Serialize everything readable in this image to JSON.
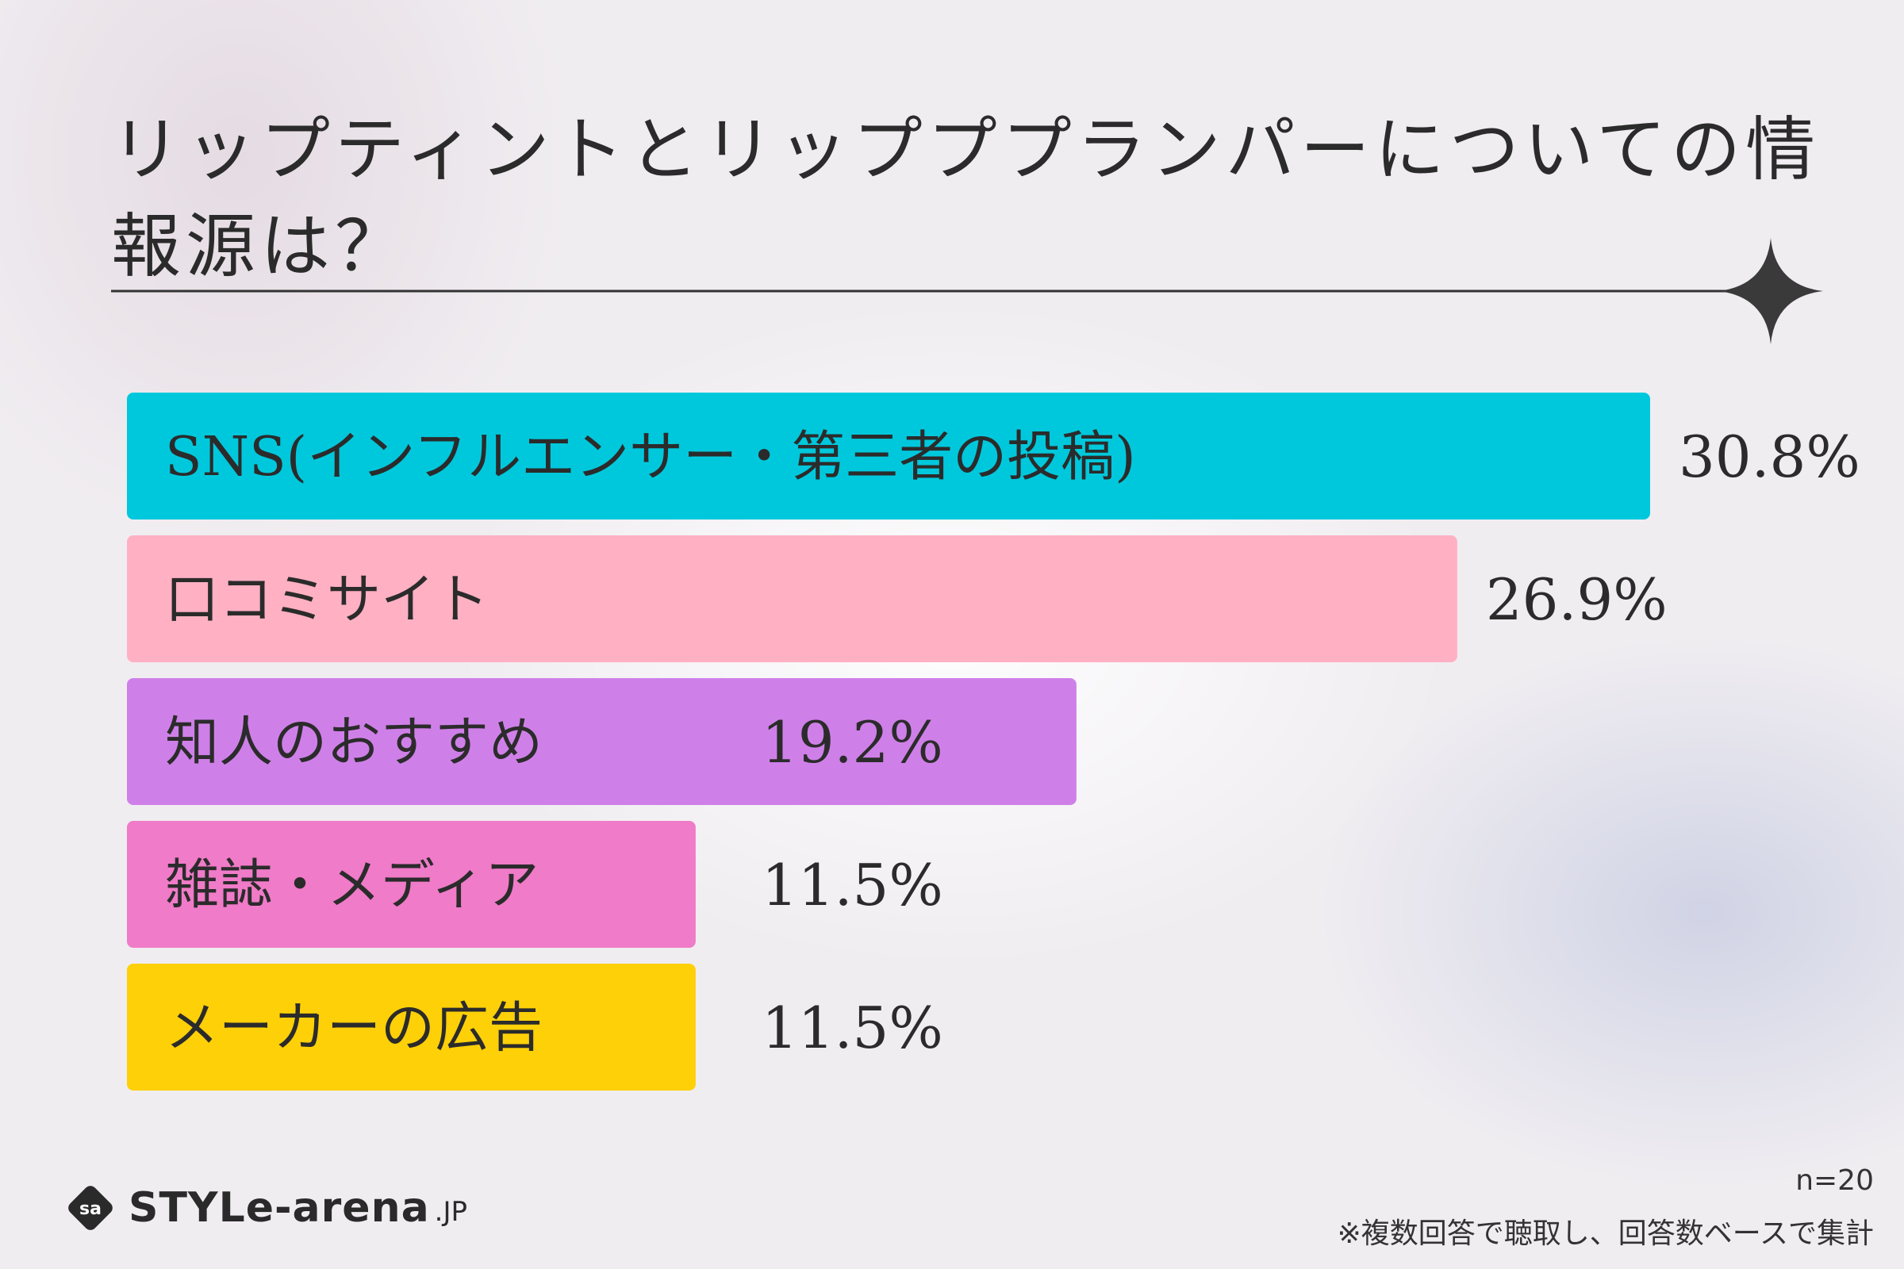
{
  "title": "リップティントとリップププランパーについての情報源は？",
  "footer": {
    "n_label": "n=20",
    "note": "※複数回答で聴取し、回答数ベースで集計"
  },
  "logo": {
    "brand": "STYLe-arena",
    "suffix": ".JP"
  },
  "colors": {
    "text": "#2b2b2b",
    "sns": "#00c8dc",
    "kuchikomi": "#ffb0c3",
    "chijin": "#cf80e8",
    "zasshi": "#f07bc8",
    "maker": "#fdd008"
  },
  "chart_data": {
    "type": "bar",
    "orientation": "horizontal",
    "title": "リップティントとリップププランパーについての情報源は？",
    "categories": [
      "SNS(インフルエンサー・第三者の投稿)",
      "口コミサイト",
      "知人のおすすめ",
      "雑誌・メディア",
      "メーカーの広告"
    ],
    "values": [
      30.8,
      26.9,
      19.2,
      11.5,
      11.5
    ],
    "value_labels": [
      "30.8%",
      "26.9%",
      "19.2%",
      "11.5%",
      "11.5%"
    ],
    "bar_colors": [
      "#00c8dc",
      "#ffb0c3",
      "#cf80e8",
      "#f07bc8",
      "#fdd008"
    ],
    "xlim": [
      0,
      30.8
    ],
    "grid": false,
    "legend": "none"
  }
}
